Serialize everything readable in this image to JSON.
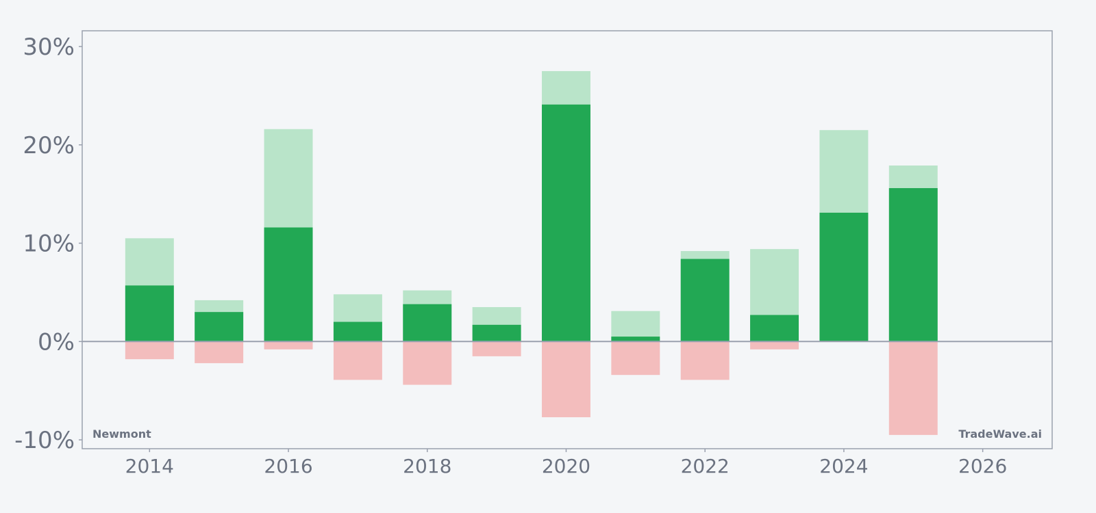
{
  "chart_data": {
    "type": "bar",
    "categories": [
      "2014",
      "2015",
      "2016",
      "2017",
      "2018",
      "2019",
      "2020",
      "2021",
      "2022",
      "2023",
      "2024",
      "2025"
    ],
    "x": [
      2014,
      2015,
      2016,
      2017,
      2018,
      2019,
      2020,
      2021,
      2022,
      2023,
      2024,
      2025
    ],
    "series": [
      {
        "values": [
          5.7,
          3.0,
          11.6,
          2.0,
          3.8,
          1.7,
          24.1,
          0.5,
          8.4,
          2.7,
          13.1,
          15.6
        ]
      },
      {
        "values": [
          10.5,
          4.2,
          21.6,
          4.8,
          5.2,
          3.5,
          27.5,
          3.1,
          9.2,
          9.4,
          21.5,
          17.9
        ]
      },
      {
        "values": [
          -1.8,
          -2.2,
          -0.8,
          -3.9,
          -4.4,
          -1.5,
          -7.7,
          -3.4,
          -3.9,
          -0.8,
          0,
          -9.5
        ]
      }
    ],
    "title": "",
    "xlabel": "",
    "ylabel": "",
    "xlim": [
      2013.03,
      2027.0
    ],
    "ylim": [
      -10.9,
      31.6
    ],
    "yticks": [
      30,
      20,
      10,
      0,
      -10
    ],
    "ytick_labels": [
      "30%",
      "20%",
      "10%",
      "0%",
      "-10%"
    ],
    "xticks": [
      2014,
      2016,
      2018,
      2020,
      2022,
      2024,
      2026
    ],
    "xtick_labels": [
      "2014",
      "2016",
      "2018",
      "2020",
      "2022",
      "2024",
      "2026"
    ],
    "grid": false,
    "legend": "none",
    "annotations": {
      "bottom_left": "Newmont",
      "bottom_right": "TradeWave.ai"
    },
    "colors": {
      "background": "#f4f6f8",
      "axis": "#9aa0ae",
      "tick_text": "#6b7280",
      "main_bar": "#22a854",
      "upper_bar": "#b9e4c9",
      "lower_bar": "#f3bdbd"
    }
  }
}
